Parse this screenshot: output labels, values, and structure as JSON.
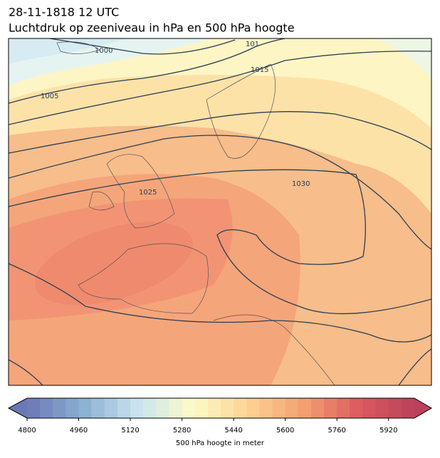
{
  "title": [
    "28-11-1818 12 UTC",
    "Luchtdruk op zeeniveau in hPa en 500 hPa hoogte"
  ],
  "map": {
    "contour_labels": [
      "1000",
      "1005",
      "1015",
      "101",
      "1025",
      "1030"
    ]
  },
  "colorbar": {
    "label": "500 hPa hoogte in meter",
    "lim": [
      4800,
      6000
    ],
    "step": 40,
    "ticks": [
      4800,
      4960,
      5120,
      5280,
      5440,
      5600,
      5760,
      5920
    ],
    "colors": [
      "#6b78b6",
      "#8bafd2",
      "#c9e4ef",
      "#fdfbc6",
      "#fdd294",
      "#f3a070",
      "#dc5a60",
      "#bb405a"
    ]
  }
}
